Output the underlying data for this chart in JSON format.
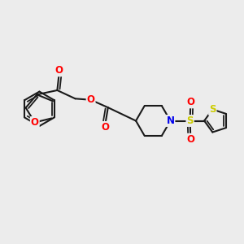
{
  "background_color": "#ececec",
  "bond_color": "#1a1a1a",
  "bond_width": 1.5,
  "atom_colors": {
    "O": "#ff0000",
    "N": "#0000ee",
    "S_sulfonyl": "#cccc00",
    "S_thio": "#cccc00",
    "C": "#1a1a1a"
  },
  "font_size": 8.5,
  "figsize": [
    3.0,
    3.0
  ],
  "dpi": 100,
  "xl": 0,
  "xr": 10,
  "yb": 0,
  "yt": 10
}
